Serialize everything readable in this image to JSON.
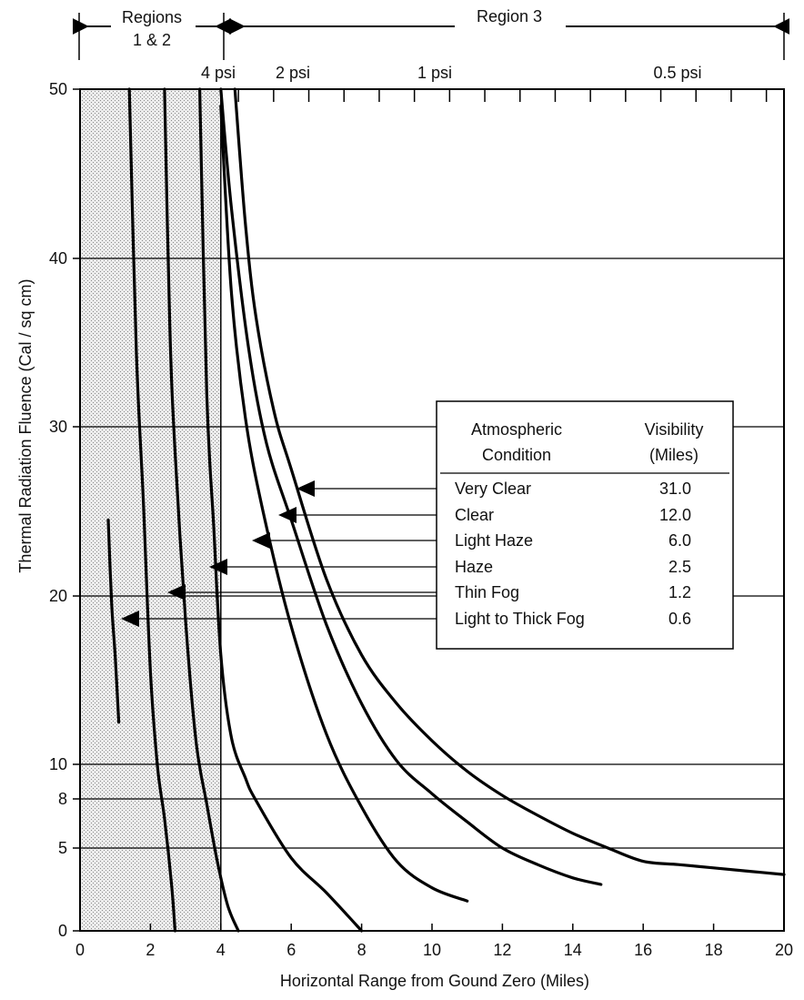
{
  "chart_data": {
    "type": "line",
    "title": "",
    "xlabel": "Horizontal Range from Gound Zero (Miles)",
    "ylabel": "Thermal Radiation Fluence (Cal / sq cm)",
    "xlim": [
      0,
      20
    ],
    "ylim": [
      0,
      50
    ],
    "x_ticks": [
      0,
      2,
      4,
      6,
      8,
      10,
      12,
      14,
      16,
      18,
      20
    ],
    "y_ticks": [
      0,
      5,
      8,
      10,
      20,
      30,
      40,
      50
    ],
    "y_axis_scale": "nonlinear (0, 5, 8, 10, 20, 30, 40, 50)",
    "grid": "horizontal lines at y ticks",
    "shaded_region": {
      "x_range": [
        0,
        4
      ],
      "label": "Regions 1 & 2",
      "fill": "stippled gray"
    },
    "top_annotations": {
      "region_left": {
        "line1": "Regions",
        "line2": "1 & 2"
      },
      "region_right": "Region 3",
      "psi_labels": [
        "4 psi",
        "2 psi",
        "1 psi",
        "0.5 psi"
      ]
    },
    "legend": {
      "placement": "center-right",
      "header_condition_1": "Atmospheric",
      "header_condition_2": "Condition",
      "header_visibility_1": "Visibility",
      "header_visibility_2": "(Miles)",
      "rows": [
        {
          "condition": "Very Clear",
          "visibility": "31.0"
        },
        {
          "condition": "Clear",
          "visibility": "12.0"
        },
        {
          "condition": "Light Haze",
          "visibility": "6.0"
        },
        {
          "condition": "Haze",
          "visibility": "2.5"
        },
        {
          "condition": "Thin Fog",
          "visibility": "1.2"
        },
        {
          "condition": "Light to Thick Fog",
          "visibility": "0.6"
        }
      ]
    },
    "series": [
      {
        "name": "Very Clear",
        "x": [
          4.4,
          4.7,
          5.0,
          5.5,
          6.0,
          7.0,
          8.0,
          9.0,
          10.0,
          11.0,
          12.0,
          13.0,
          14.0,
          15.0,
          16.0,
          17.0,
          18.0,
          19.0,
          20.0
        ],
        "y": [
          50,
          42,
          36.5,
          31,
          27.5,
          21,
          16.5,
          13.6,
          11.4,
          9.6,
          8.2,
          7.0,
          5.9,
          5.0,
          4.2,
          4.0,
          3.8,
          3.6,
          3.4
        ]
      },
      {
        "name": "Clear",
        "x": [
          4.0,
          4.3,
          4.8,
          5.3,
          6.0,
          7.0,
          8.0,
          9.0,
          10.0,
          11.0,
          12.0,
          13.0,
          14.0,
          14.8
        ],
        "y": [
          50,
          43,
          34.5,
          29,
          24.5,
          18.3,
          13.6,
          10.2,
          8.3,
          6.6,
          5.0,
          4.0,
          3.2,
          2.8
        ]
      },
      {
        "name": "Light Haze",
        "x": [
          4.0,
          4.3,
          4.7,
          5.2,
          6.0,
          7.0,
          8.0,
          9.0,
          10.0,
          11.0
        ],
        "y": [
          49,
          38,
          30.5,
          25,
          18.2,
          11.8,
          7.5,
          4.2,
          2.6,
          1.8
        ]
      },
      {
        "name": "Haze",
        "x": [
          3.4,
          3.6,
          3.8,
          4.0,
          4.3,
          4.7,
          5.0,
          6.0,
          7.0,
          8.0
        ],
        "y": [
          50,
          32,
          24,
          16.5,
          11.6,
          9.2,
          7.9,
          4.4,
          2.3,
          0
        ]
      },
      {
        "name": "Thin Fog",
        "x": [
          2.4,
          2.55,
          2.7,
          3.0,
          3.3,
          3.6,
          3.9,
          4.2,
          4.5
        ],
        "y": [
          50,
          36,
          28.5,
          18.5,
          11.3,
          7.7,
          4.2,
          1.5,
          0
        ]
      },
      {
        "name": "Light to Thick Fog",
        "x": [
          1.4,
          1.6,
          1.8,
          2.0,
          2.2,
          2.4,
          2.6,
          2.7
        ],
        "y": [
          50,
          34.5,
          25.5,
          15.5,
          9.9,
          6.8,
          2.8,
          0
        ]
      },
      {
        "name": "",
        "x": [
          0.8,
          0.9,
          1.0,
          1.1
        ],
        "y": [
          24.5,
          19.5,
          16.4,
          12.5
        ]
      }
    ]
  }
}
